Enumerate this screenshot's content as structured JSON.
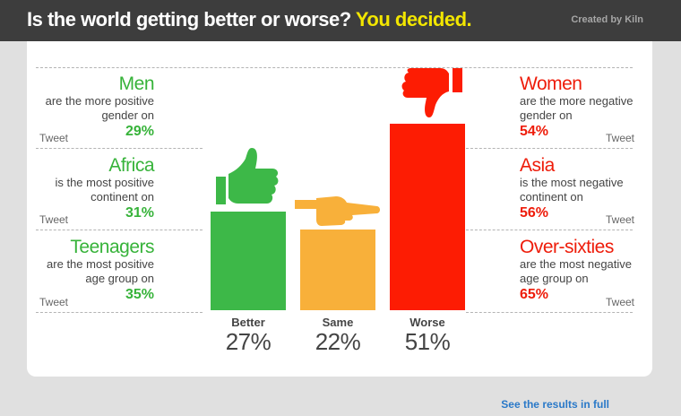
{
  "header": {
    "title_main": "Is the world getting better or worse?",
    "title_accent": "You decided.",
    "credit": "Created by Kiln"
  },
  "left_panels": [
    {
      "head": "Men",
      "line1": "are the more positive",
      "line2": "gender on",
      "pct": "29%",
      "tweet": "Tweet"
    },
    {
      "head": "Africa",
      "line1": "is the most positive",
      "line2": "continent on",
      "pct": "31%",
      "tweet": "Tweet"
    },
    {
      "head": "Teenagers",
      "line1": "are the most positive",
      "line2": "age group on",
      "pct": "35%",
      "tweet": "Tweet"
    }
  ],
  "right_panels": [
    {
      "head": "Women",
      "line1": "are the more negative",
      "line2": "gender on",
      "pct": "54%",
      "tweet": "Tweet"
    },
    {
      "head": "Asia",
      "line1": "is the most negative",
      "line2": "continent on",
      "pct": "56%",
      "tweet": "Tweet"
    },
    {
      "head": "Over-sixties",
      "line1": "are the most negative",
      "line2": "age group on",
      "pct": "65%",
      "tweet": "Tweet"
    }
  ],
  "chart_data": {
    "type": "bar",
    "categories": [
      "Better",
      "Same",
      "Worse"
    ],
    "values": [
      27,
      22,
      51
    ],
    "value_labels": [
      "27%",
      "22%",
      "51%"
    ],
    "colors": [
      "#3db848",
      "#f8b03a",
      "#fd1c03"
    ],
    "ylim": [
      0,
      51
    ]
  },
  "icons": {
    "better": "thumbs-up-icon",
    "same": "thumb-sideways-icon",
    "worse": "thumbs-down-icon"
  },
  "footer": {
    "link": "See the results in full"
  }
}
